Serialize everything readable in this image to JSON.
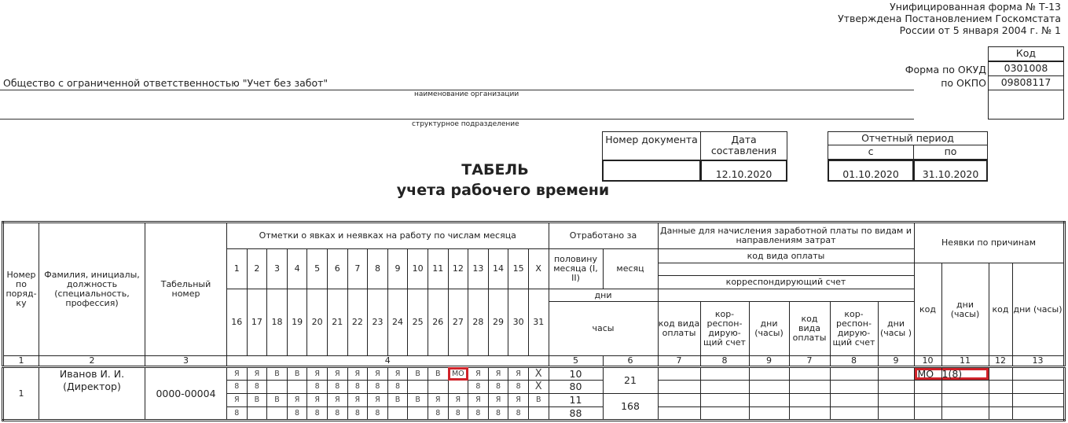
{
  "form_info": [
    "Унифицированная форма № Т-13",
    "Утверждена Постановлением Госкомстата",
    "России от 5 января 2004 г. № 1"
  ],
  "codes": {
    "header": "Код",
    "okud_label": "Форма по ОКУД",
    "okud": "0301008",
    "okpo_label": "по ОКПО",
    "okpo": "09808117"
  },
  "organization": {
    "name": "Общество с ограниченной ответственностью \"Учет без забот\"",
    "name_caption": "наименование организации",
    "division": "",
    "division_caption": "структурное подразделение"
  },
  "document": {
    "number_label": "Номер документа",
    "date_label": "Дата составления",
    "number": "",
    "date": "12.10.2020"
  },
  "period": {
    "label": "Отчетный период",
    "from_label": "с",
    "to_label": "по",
    "from": "01.10.2020",
    "to": "31.10.2020"
  },
  "title": "ТАБЕЛЬ",
  "subtitle": "учета  рабочего времени",
  "table": {
    "h_num": "Номер по поряд-ку",
    "h_name": "Фамилия, инициалы, должность (специальность, профессия)",
    "h_tab": "Табельный номер",
    "h_marks": "Отметки о явках и неявках на работу по числам месяца",
    "days_first": [
      "1",
      "2",
      "3",
      "4",
      "5",
      "6",
      "7",
      "8",
      "9",
      "10",
      "11",
      "12",
      "13",
      "14",
      "15",
      "X"
    ],
    "days_second": [
      "16",
      "17",
      "18",
      "19",
      "20",
      "21",
      "22",
      "23",
      "24",
      "25",
      "26",
      "27",
      "28",
      "29",
      "30",
      "31"
    ],
    "h_worked": "Отработано за",
    "h_half": "половину месяца (I, II)",
    "h_month": "месяц",
    "h_days": "дни",
    "h_hours": "часы",
    "h_pay": "Данные для начисления заработной платы по видам и направлениям затрат",
    "h_paycode": "код вида оплаты",
    "h_corr": "корреспондирующий счет",
    "pay_cols": [
      "код вида оплаты",
      "кор-респон-дирую-щий счет",
      "дни (часы)",
      "код вида оплаты",
      "кор-респон-дирую-щий счет",
      "дни (часы )"
    ],
    "h_absence": "Неявки по причинам",
    "abs_cols": [
      "код",
      "дни (часы)",
      "код",
      "дни (часы)"
    ],
    "col_numbers": [
      "1",
      "2",
      "3",
      "4",
      "5",
      "6",
      "7",
      "8",
      "9",
      "7",
      "8",
      "9",
      "10",
      "11",
      "12",
      "13"
    ],
    "rows": [
      {
        "num": "1",
        "name": "Иванов И. И. (Директор)",
        "tab": "0000-00004",
        "marks": [
          [
            "Я",
            "Я",
            "В",
            "В",
            "Я",
            "Я",
            "Я",
            "Я",
            "Я",
            "В",
            "В",
            "МО",
            "Я",
            "Я",
            "Я",
            "Х"
          ],
          [
            "8",
            "8",
            "",
            "",
            "8",
            "8",
            "8",
            "8",
            "8",
            "",
            "",
            "",
            "8",
            "8",
            "8",
            "Х"
          ],
          [
            "Я",
            "В",
            "В",
            "Я",
            "Я",
            "Я",
            "Я",
            "Я",
            "В",
            "В",
            "Я",
            "Я",
            "Я",
            "Я",
            "Я",
            "В"
          ],
          [
            "8",
            "",
            "",
            "8",
            "8",
            "8",
            "8",
            "8",
            "",
            "",
            "8",
            "8",
            "8",
            "8",
            "8",
            ""
          ]
        ],
        "half": [
          "10",
          "80",
          "11",
          "88"
        ],
        "month": [
          "21",
          "168"
        ],
        "absence_code": "МО",
        "absence_days": "1(8)"
      }
    ]
  },
  "highlight_color": "#d0232a"
}
